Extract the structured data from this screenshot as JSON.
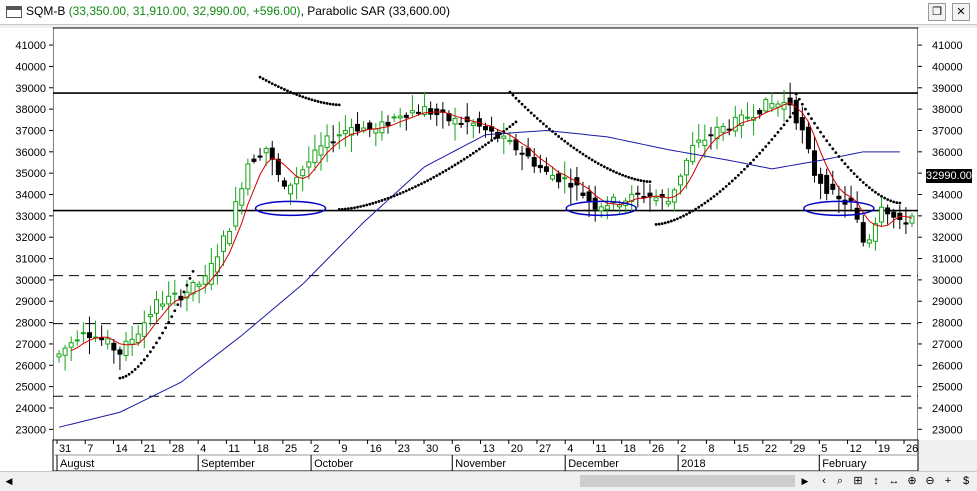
{
  "window": {
    "symbol": "SQM-B",
    "prices": "(33,350.00, 31,910.00, 32,990.00, +596.00)",
    "indicator": "Parabolic SAR (33,600.00)",
    "restore_label": "❐",
    "close_label": "✕"
  },
  "chart_data": {
    "type": "candlestick",
    "title": "",
    "ylim": [
      22500,
      41800
    ],
    "y_ticks": [
      23000,
      24000,
      25000,
      26000,
      27000,
      28000,
      29000,
      30000,
      31000,
      32000,
      33000,
      34000,
      35000,
      36000,
      37000,
      38000,
      39000,
      40000,
      41000
    ],
    "x_tick_labels": [
      "31",
      "7",
      "14",
      "21",
      "28",
      "4",
      "11",
      "18",
      "25",
      "2",
      "9",
      "16",
      "23",
      "30",
      "6",
      "13",
      "20",
      "27",
      "4",
      "11",
      "18",
      "26",
      "2",
      "8",
      "15",
      "22",
      "29",
      "5",
      "12",
      "19",
      "26"
    ],
    "month_labels": [
      "August",
      "September",
      "October",
      "November",
      "December",
      "2018",
      "February"
    ],
    "last_price_label": "32990.00",
    "horizontal_lines": [
      {
        "value": 38750,
        "style": "solid"
      },
      {
        "value": 33250,
        "style": "solid"
      },
      {
        "value": 30200,
        "style": "dashed"
      },
      {
        "value": 27950,
        "style": "dashed"
      },
      {
        "value": 24550,
        "style": "dashed"
      }
    ],
    "price_anchors": [
      [
        0,
        26500
      ],
      [
        4,
        27700
      ],
      [
        8,
        27000
      ],
      [
        10,
        26600
      ],
      [
        13,
        27600
      ],
      [
        16,
        28900
      ],
      [
        20,
        29300
      ],
      [
        24,
        30000
      ],
      [
        28,
        32500
      ],
      [
        31,
        35500
      ],
      [
        34,
        36200
      ],
      [
        37,
        34200
      ],
      [
        40,
        35200
      ],
      [
        44,
        36500
      ],
      [
        48,
        37200
      ],
      [
        52,
        37000
      ],
      [
        56,
        37800
      ],
      [
        60,
        38000
      ],
      [
        64,
        37500
      ],
      [
        68,
        37300
      ],
      [
        72,
        36700
      ],
      [
        76,
        36000
      ],
      [
        80,
        35000
      ],
      [
        84,
        34600
      ],
      [
        88,
        33500
      ],
      [
        92,
        33700
      ],
      [
        96,
        34000
      ],
      [
        100,
        33700
      ],
      [
        104,
        36200
      ],
      [
        108,
        37000
      ],
      [
        112,
        37500
      ],
      [
        116,
        38200
      ],
      [
        120,
        38300
      ],
      [
        122,
        36900
      ],
      [
        124,
        35000
      ],
      [
        126,
        34300
      ],
      [
        128,
        33700
      ],
      [
        130,
        33600
      ],
      [
        132,
        31800
      ],
      [
        133,
        32000
      ],
      [
        135,
        33600
      ],
      [
        138,
        32600
      ],
      [
        140,
        32990
      ]
    ],
    "sar_segments": [
      {
        "from": 10,
        "to": 22,
        "y_from": 25400,
        "y_to": 30400,
        "position": "below"
      },
      {
        "from": 33,
        "to": 46,
        "y_from": 39500,
        "y_to": 38200,
        "position": "above"
      },
      {
        "from": 46,
        "to": 75,
        "y_from": 33300,
        "y_to": 37400,
        "position": "below"
      },
      {
        "from": 74,
        "to": 97,
        "y_from": 38800,
        "y_to": 34600,
        "position": "above"
      },
      {
        "from": 98,
        "to": 121,
        "y_from": 32600,
        "y_to": 38000,
        "position": "below"
      },
      {
        "from": 121,
        "to": 138,
        "y_from": 38700,
        "y_to": 33600,
        "position": "above"
      }
    ],
    "blue_ma_anchors": [
      [
        0,
        23100
      ],
      [
        10,
        23800
      ],
      [
        20,
        25200
      ],
      [
        30,
        27400
      ],
      [
        40,
        29800
      ],
      [
        50,
        32700
      ],
      [
        60,
        35300
      ],
      [
        70,
        36800
      ],
      [
        80,
        37000
      ],
      [
        90,
        36700
      ],
      [
        100,
        36100
      ],
      [
        110,
        35600
      ],
      [
        117,
        35200
      ],
      [
        125,
        35600
      ],
      [
        132,
        36000
      ],
      [
        138,
        36000
      ]
    ],
    "ellipses": [
      {
        "center": 38,
        "value": 33350
      },
      {
        "center": 89,
        "value": 33350
      },
      {
        "center": 128,
        "value": 33350
      }
    ],
    "colors": {
      "up_candle": "#17a317",
      "down_candle": "#000000",
      "red_ma": "#d40000",
      "blue_ma": "#1a1aa8",
      "sar": "#000000",
      "ellipse": "#0000c8"
    }
  },
  "toolbar": {
    "icons": [
      "chevron-left-icon",
      "search-icon",
      "scale-icon",
      "scroll-vertical-icon",
      "scroll-horizontal-icon",
      "zoom-in-icon",
      "zoom-out-icon",
      "plus-icon",
      "dollar-icon"
    ]
  }
}
